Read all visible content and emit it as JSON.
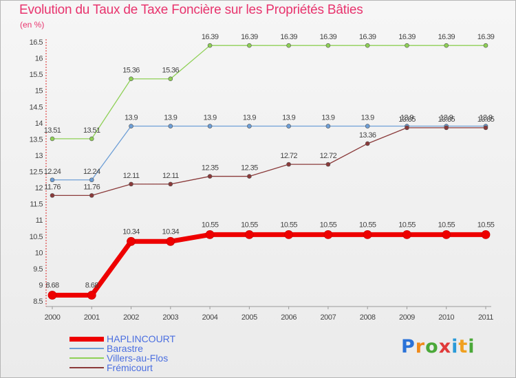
{
  "title": "Evolution du Taux de Taxe Foncière sur les Propriétés Bâties",
  "unit_label": "(en %)",
  "logo": {
    "letters": [
      "P",
      "r",
      "o",
      "x",
      "i",
      "t",
      "i"
    ],
    "colors": [
      "#2a72d8",
      "#f08a1a",
      "#4aa838",
      "#e03a3a",
      "#2a9ad8",
      "#f0a020",
      "#4aa838"
    ]
  },
  "chart_data": {
    "type": "line",
    "title": "Evolution du Taux de Taxe Foncière sur les Propriétés Bâties",
    "ylabel": "(en %)",
    "xlabel": "",
    "categories": [
      "2000",
      "2001",
      "2002",
      "2003",
      "2004",
      "2005",
      "2006",
      "2007",
      "2008",
      "2009",
      "2010",
      "2011"
    ],
    "ylim": [
      8.5,
      16.5
    ],
    "yticks": [
      "8.5",
      "9",
      "9.5",
      "10",
      "10.5",
      "11",
      "11.5",
      "12",
      "12.5",
      "13",
      "13.5",
      "14",
      "14.5",
      "15",
      "15.5",
      "16",
      "16.5"
    ],
    "grid": false,
    "series": [
      {
        "name": "HAPLINCOURT",
        "color": "#ee0000",
        "values": [
          8.68,
          8.68,
          10.34,
          10.34,
          10.55,
          10.55,
          10.55,
          10.55,
          10.55,
          10.55,
          10.55,
          10.55
        ],
        "labels": [
          "8.68",
          "8.68",
          "10.34",
          "10.34",
          "10.55",
          "10.55",
          "10.55",
          "10.55",
          "10.55",
          "10.55",
          "10.55",
          "10.55"
        ]
      },
      {
        "name": "Barastre",
        "color": "#6d9ed6",
        "values": [
          12.24,
          12.24,
          13.9,
          13.9,
          13.9,
          13.9,
          13.9,
          13.9,
          13.9,
          13.9,
          13.9,
          13.9
        ],
        "labels": [
          "12.24",
          "12.24",
          "13.9",
          "13.9",
          "13.9",
          "13.9",
          "13.9",
          "13.9",
          "13.9",
          "13.9",
          "13.9",
          "13.9"
        ]
      },
      {
        "name": "Villers-au-Flos",
        "color": "#8ed055",
        "values": [
          13.51,
          13.51,
          15.36,
          15.36,
          16.39,
          16.39,
          16.39,
          16.39,
          16.39,
          16.39,
          16.39,
          16.39
        ],
        "labels": [
          "13.51",
          "13.51",
          "15.36",
          "15.36",
          "16.39",
          "16.39",
          "16.39",
          "16.39",
          "16.39",
          "16.39",
          "16.39",
          "16.39"
        ]
      },
      {
        "name": "Frémicourt",
        "color": "#8a3a3a",
        "values": [
          11.76,
          11.76,
          12.11,
          12.11,
          12.35,
          12.35,
          12.72,
          12.72,
          13.36,
          13.85,
          13.85,
          13.85
        ],
        "labels": [
          "11.76",
          "11.76",
          "12.11",
          "12.11",
          "12.35",
          "12.35",
          "12.72",
          "12.72",
          "13.36",
          "13.85",
          "13.85",
          "13.85"
        ]
      }
    ]
  }
}
